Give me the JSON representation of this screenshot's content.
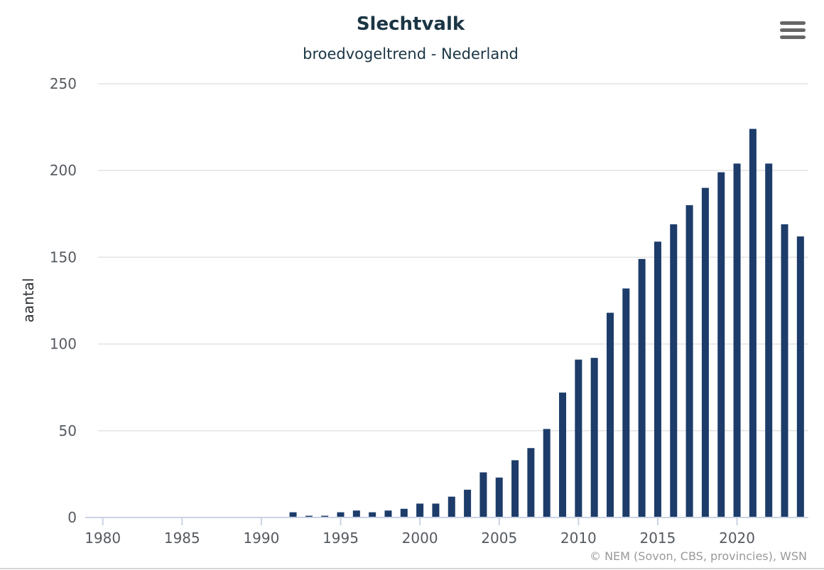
{
  "chart_data": {
    "type": "bar",
    "title": "Slechtvalk",
    "subtitle": "broedvogeltrend - Nederland",
    "ylabel": "aantal",
    "xlabel": "",
    "ylim": [
      0,
      250
    ],
    "yticks": [
      0,
      50,
      100,
      150,
      200,
      250
    ],
    "xticks": [
      1980,
      1985,
      1990,
      1995,
      2000,
      2005,
      2010,
      2015,
      2020
    ],
    "xlim": [
      1979.7,
      2024.5
    ],
    "grid": true,
    "legend": "none",
    "bar_color": "#1d3c6a",
    "x": [
      1992,
      1993,
      1994,
      1995,
      1996,
      1997,
      1998,
      1999,
      2000,
      2001,
      2002,
      2003,
      2004,
      2005,
      2006,
      2007,
      2008,
      2009,
      2010,
      2011,
      2012,
      2013,
      2014,
      2015,
      2016,
      2017,
      2018,
      2019,
      2020,
      2021,
      2022,
      2023,
      2024
    ],
    "values": [
      3,
      1,
      1,
      3,
      4,
      3,
      4,
      5,
      8,
      8,
      12,
      16,
      26,
      23,
      33,
      40,
      51,
      72,
      91,
      92,
      118,
      132,
      149,
      159,
      169,
      180,
      190,
      199,
      204,
      224,
      204,
      169,
      162
    ],
    "credits": "© NEM (Sovon, CBS, provincies), WSN"
  },
  "menu": {
    "icon": "hamburger-menu-icon"
  }
}
